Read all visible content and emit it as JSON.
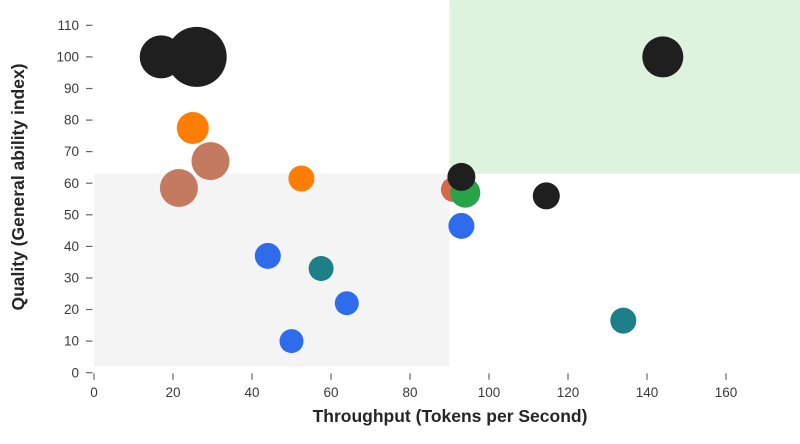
{
  "chart_data": {
    "type": "bubble",
    "title": "",
    "xlabel": "Throughput (Tokens per Second)",
    "ylabel": "Quality (General ability index)",
    "x_ticks": [
      0,
      20,
      40,
      60,
      80,
      100,
      120,
      140,
      160
    ],
    "y_ticks": [
      0,
      10,
      20,
      30,
      40,
      50,
      60,
      70,
      80,
      90,
      100,
      110
    ],
    "xlim": [
      0,
      178.8
    ],
    "ylim": [
      0,
      118
    ],
    "grid": false,
    "legend": "none",
    "colors": {
      "black": "#1f1f1f",
      "orange": "#ff7d00",
      "sienna": "#c47a5e",
      "red": "#d5694c",
      "green": "#29a349",
      "blue": "#2f6cec",
      "teal": "#1d7f87"
    },
    "region_colors": {
      "lower_left": "#f4f4f5",
      "upper_right": "#def3de"
    },
    "regions": [
      {
        "name": "lower-left-region",
        "x": [
          0,
          90
        ],
        "y": [
          2,
          63
        ],
        "color_key": "lower_left"
      },
      {
        "name": "upper-right-region",
        "x": [
          90,
          178.8
        ],
        "y": [
          63,
          118
        ],
        "color_key": "upper_right"
      }
    ],
    "points": [
      {
        "x": 17,
        "y": 100,
        "r": 21.5,
        "c": "black"
      },
      {
        "x": 26,
        "y": 100,
        "r": 30,
        "c": "black"
      },
      {
        "x": 25,
        "y": 77.5,
        "r": 16,
        "c": "orange"
      },
      {
        "x": 29.5,
        "y": 67,
        "r": 19,
        "c": "sienna"
      },
      {
        "x": 21.5,
        "y": 58.5,
        "r": 19,
        "c": "sienna"
      },
      {
        "x": 52.5,
        "y": 61.5,
        "r": 13,
        "c": "orange"
      },
      {
        "x": 91,
        "y": 58,
        "r": 12.5,
        "c": "red"
      },
      {
        "x": 94,
        "y": 57,
        "r": 15,
        "c": "green"
      },
      {
        "x": 93,
        "y": 62,
        "r": 14,
        "c": "black"
      },
      {
        "x": 93,
        "y": 46.5,
        "r": 13,
        "c": "blue"
      },
      {
        "x": 114.5,
        "y": 56,
        "r": 13.5,
        "c": "black"
      },
      {
        "x": 144,
        "y": 100,
        "r": 20.5,
        "c": "black"
      },
      {
        "x": 44,
        "y": 37,
        "r": 13,
        "c": "blue"
      },
      {
        "x": 57.5,
        "y": 33,
        "r": 12.5,
        "c": "teal"
      },
      {
        "x": 64,
        "y": 22,
        "r": 12,
        "c": "blue"
      },
      {
        "x": 50,
        "y": 10,
        "r": 12,
        "c": "blue"
      },
      {
        "x": 134,
        "y": 16.5,
        "r": 13,
        "c": "teal"
      }
    ]
  }
}
